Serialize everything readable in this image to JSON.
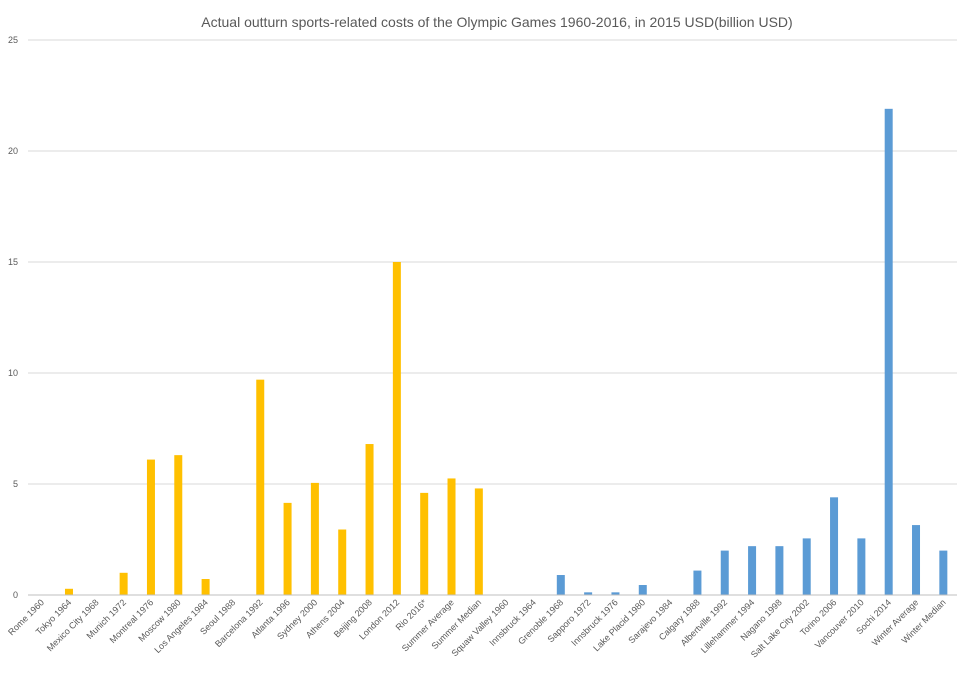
{
  "chart_data": {
    "type": "bar",
    "title": "Actual outturn sports-related costs of the Olympic Games 1960-2016, in 2015 USD(billion USD)",
    "xlabel": "",
    "ylabel": "",
    "ylim": [
      0,
      25
    ],
    "yticks": [
      0,
      5,
      10,
      15,
      20,
      25
    ],
    "grid": true,
    "legend": "none",
    "categories": [
      "Rome 1960",
      "Tokyo 1964",
      "Mexico City 1968",
      "Munich 1972",
      "Montreal 1976",
      "Moscow 1980",
      "Los Angeles 1984",
      "Seoul 1988",
      "Barcelona 1992",
      "Atlanta 1996",
      "Sydney 2000",
      "Athens 2004",
      "Beijing 2008",
      "London 2012",
      "Rio 2016*",
      "Summer Average",
      "Summer Median",
      "Squaw Valley 1960",
      "Innsbruck 1964",
      "Grenoble 1968",
      "Sapporo 1972",
      "Innsbruck 1976",
      "Lake Placid 1980",
      "Sarajevo 1984",
      "Calgary 1988",
      "Albertville 1992",
      "Lillehammer 1994",
      "Nagano 1998",
      "Salt Lake City 2002",
      "Torino 2006",
      "Vancouver 2010",
      "Sochi 2014",
      "Winter Average",
      "Winter Median"
    ],
    "values": [
      0,
      0.28,
      0,
      1.0,
      6.1,
      6.3,
      0.72,
      0,
      9.7,
      4.15,
      5.05,
      2.95,
      6.8,
      15.0,
      4.6,
      5.25,
      4.8,
      0,
      0,
      0.9,
      0.12,
      0.12,
      0.45,
      0,
      1.1,
      2.0,
      2.2,
      2.2,
      2.55,
      4.4,
      2.55,
      21.9,
      3.15,
      2.0
    ],
    "bar_colors_by_group": {
      "summer": "#ffc000",
      "winter": "#5b9bd5"
    },
    "summer_count": 17
  }
}
